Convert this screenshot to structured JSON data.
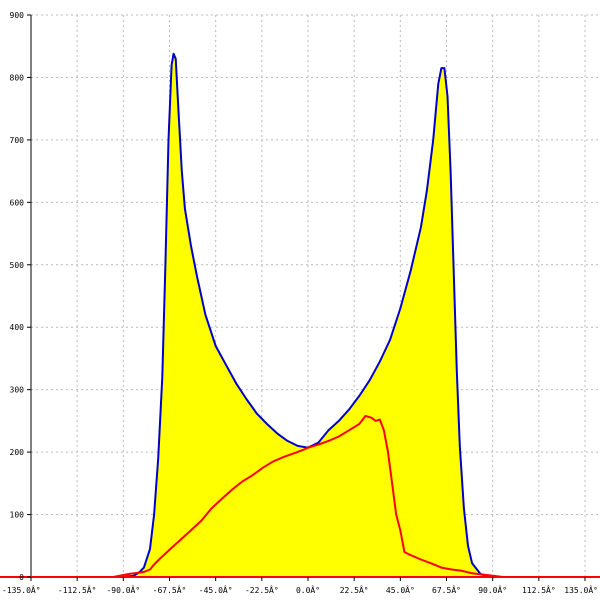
{
  "chart_data": {
    "type": "area",
    "title": "",
    "xlabel": "",
    "ylabel": "",
    "xlim": [
      -135,
      135
    ],
    "ylim": [
      0,
      900
    ],
    "grid": true,
    "x_ticks": [
      {
        "value": -135.0,
        "label": "-135.0Â°"
      },
      {
        "value": -112.5,
        "label": "-112.5Â°"
      },
      {
        "value": -90.0,
        "label": "-90.0Â°"
      },
      {
        "value": -67.5,
        "label": "-67.5Â°"
      },
      {
        "value": -45.0,
        "label": "-45.0Â°"
      },
      {
        "value": -22.5,
        "label": "-22.5Â°"
      },
      {
        "value": 0.0,
        "label": "0.0Â°"
      },
      {
        "value": 22.5,
        "label": "22.5Â°"
      },
      {
        "value": 45.0,
        "label": "45.0Â°"
      },
      {
        "value": 67.5,
        "label": "67.5Â°"
      },
      {
        "value": 90.0,
        "label": "90.0Â°"
      },
      {
        "value": 112.5,
        "label": "112.5Â°"
      },
      {
        "value": 135.0,
        "label": "135.0Â°"
      }
    ],
    "y_ticks": [
      {
        "value": 0,
        "label": "0"
      },
      {
        "value": 100,
        "label": "100"
      },
      {
        "value": 200,
        "label": "200"
      },
      {
        "value": 300,
        "label": "300"
      },
      {
        "value": 400,
        "label": "400"
      },
      {
        "value": 500,
        "label": "500"
      },
      {
        "value": 600,
        "label": "600"
      },
      {
        "value": 700,
        "label": "700"
      },
      {
        "value": 800,
        "label": "800"
      },
      {
        "value": 900,
        "label": "900"
      }
    ],
    "series": [
      {
        "color": "#0000cc",
        "fill": "#ffff00",
        "points": [
          [
            -90,
            0
          ],
          [
            -85,
            2
          ],
          [
            -82,
            8
          ],
          [
            -80,
            15
          ],
          [
            -77,
            45
          ],
          [
            -75,
            100
          ],
          [
            -73,
            190
          ],
          [
            -71,
            320
          ],
          [
            -69.5,
            500
          ],
          [
            -68,
            700
          ],
          [
            -66.5,
            820
          ],
          [
            -65.5,
            838
          ],
          [
            -64.5,
            830
          ],
          [
            -63,
            740
          ],
          [
            -61.5,
            650
          ],
          [
            -60,
            590
          ],
          [
            -57,
            530
          ],
          [
            -54,
            480
          ],
          [
            -50,
            420
          ],
          [
            -45,
            370
          ],
          [
            -40,
            340
          ],
          [
            -35,
            310
          ],
          [
            -30,
            285
          ],
          [
            -25,
            262
          ],
          [
            -20,
            245
          ],
          [
            -15,
            230
          ],
          [
            -10,
            218
          ],
          [
            -5,
            210
          ],
          [
            0,
            207
          ],
          [
            5,
            215
          ],
          [
            10,
            235
          ],
          [
            15,
            250
          ],
          [
            20,
            268
          ],
          [
            25,
            290
          ],
          [
            30,
            315
          ],
          [
            35,
            345
          ],
          [
            40,
            380
          ],
          [
            45,
            430
          ],
          [
            50,
            490
          ],
          [
            55,
            560
          ],
          [
            58,
            620
          ],
          [
            61,
            700
          ],
          [
            63.5,
            790
          ],
          [
            65,
            815
          ],
          [
            66.5,
            815
          ],
          [
            68,
            770
          ],
          [
            69.5,
            650
          ],
          [
            71,
            490
          ],
          [
            72.5,
            330
          ],
          [
            74,
            210
          ],
          [
            76,
            110
          ],
          [
            78,
            50
          ],
          [
            80,
            22
          ],
          [
            84,
            5
          ],
          [
            88,
            0
          ],
          [
            90,
            0
          ]
        ]
      },
      {
        "color": "#ff0000",
        "points": [
          [
            -135,
            0
          ],
          [
            -95,
            0
          ],
          [
            -92,
            2
          ],
          [
            -87,
            5
          ],
          [
            -80,
            8
          ],
          [
            -77,
            12
          ],
          [
            -75,
            20
          ],
          [
            -72,
            30
          ],
          [
            -67,
            45
          ],
          [
            -62,
            60
          ],
          [
            -57,
            75
          ],
          [
            -52,
            90
          ],
          [
            -47,
            110
          ],
          [
            -42,
            125
          ],
          [
            -37,
            140
          ],
          [
            -32,
            153
          ],
          [
            -27,
            163
          ],
          [
            -22,
            175
          ],
          [
            -17,
            185
          ],
          [
            -12,
            192
          ],
          [
            -7,
            198
          ],
          [
            -2,
            204
          ],
          [
            0,
            207
          ],
          [
            5,
            212
          ],
          [
            10,
            218
          ],
          [
            15,
            225
          ],
          [
            20,
            235
          ],
          [
            25,
            245
          ],
          [
            28,
            258
          ],
          [
            31,
            255
          ],
          [
            33,
            250
          ],
          [
            35,
            252
          ],
          [
            37,
            235
          ],
          [
            39,
            200
          ],
          [
            41,
            150
          ],
          [
            43,
            100
          ],
          [
            45,
            75
          ],
          [
            47,
            40
          ],
          [
            50,
            35
          ],
          [
            55,
            28
          ],
          [
            60,
            22
          ],
          [
            65,
            15
          ],
          [
            70,
            12
          ],
          [
            75,
            10
          ],
          [
            80,
            6
          ],
          [
            85,
            4
          ],
          [
            90,
            2
          ],
          [
            95,
            0
          ],
          [
            135,
            0
          ]
        ]
      }
    ]
  }
}
